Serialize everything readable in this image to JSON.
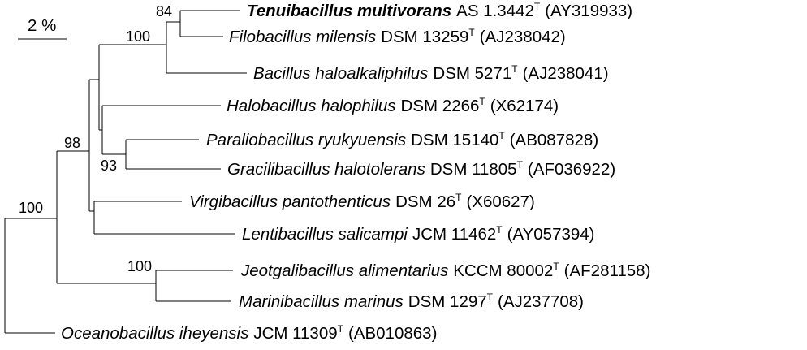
{
  "scale_bar": {
    "label": "2 %"
  },
  "taxa": [
    {
      "id": "tenuibacillus",
      "genus_species": "Tenuibacillus multivorans",
      "strain": "AS 1.3442",
      "type_mark": "T",
      "accession": "(AY319933)",
      "bold": true
    },
    {
      "id": "filobacillus",
      "genus_species": "Filobacillus milensis",
      "strain": "DSM 13259",
      "type_mark": "T",
      "accession": "(AJ238042)",
      "bold": false
    },
    {
      "id": "bacillus",
      "genus_species": "Bacillus haloalkaliphilus",
      "strain": "DSM 5271",
      "type_mark": "T",
      "accession": "(AJ238041)",
      "bold": false
    },
    {
      "id": "halobacillus",
      "genus_species": "Halobacillus halophilus",
      "strain": "DSM 2266",
      "type_mark": "T",
      "accession": "(X62174)",
      "bold": false
    },
    {
      "id": "paraliobacillus",
      "genus_species": "Paraliobacillus ryukyuensis",
      "strain": "DSM 15140",
      "type_mark": "T",
      "accession": "(AB087828)",
      "bold": false
    },
    {
      "id": "gracilibacillus",
      "genus_species": "Gracilibacillus halotolerans",
      "strain": "DSM 11805",
      "type_mark": "T",
      "accession": "(AF036922)",
      "bold": false
    },
    {
      "id": "virgibacillus",
      "genus_species": "Virgibacillus pantothenticus",
      "strain": "DSM 26",
      "type_mark": "T",
      "accession": "(X60627)",
      "bold": false
    },
    {
      "id": "lentibacillus",
      "genus_species": "Lentibacillus salicampi",
      "strain": "JCM 11462",
      "type_mark": "T",
      "accession": "(AY057394)",
      "bold": false
    },
    {
      "id": "jeotgalibacillus",
      "genus_species": "Jeotgalibacillus alimentarius",
      "strain": "KCCM 80002",
      "type_mark": "T",
      "accession": "(AF281158)",
      "bold": false
    },
    {
      "id": "marinibacillus",
      "genus_species": "Marinibacillus marinus",
      "strain": "DSM 1297",
      "type_mark": "T",
      "accession": "(AJ237708)",
      "bold": false
    },
    {
      "id": "oceanobacillus",
      "genus_species": "Oceanobacillus iheyensis",
      "strain": "JCM 11309",
      "type_mark": "T",
      "accession": "(AB010863)",
      "bold": false
    }
  ],
  "bootstrap": [
    {
      "id": "tenuibacillus-filobacillus",
      "value": "84"
    },
    {
      "id": "tenuibacillus-filobacillus-bacillus",
      "value": "100"
    },
    {
      "id": "paraliobacillus-gracilibacillus",
      "value": "93"
    },
    {
      "id": "ingroup-minus-jeotgali-marini",
      "value": "98"
    },
    {
      "id": "ingroup",
      "value": "100"
    },
    {
      "id": "jeotgalibacillus-marinibacillus",
      "value": "100"
    }
  ]
}
